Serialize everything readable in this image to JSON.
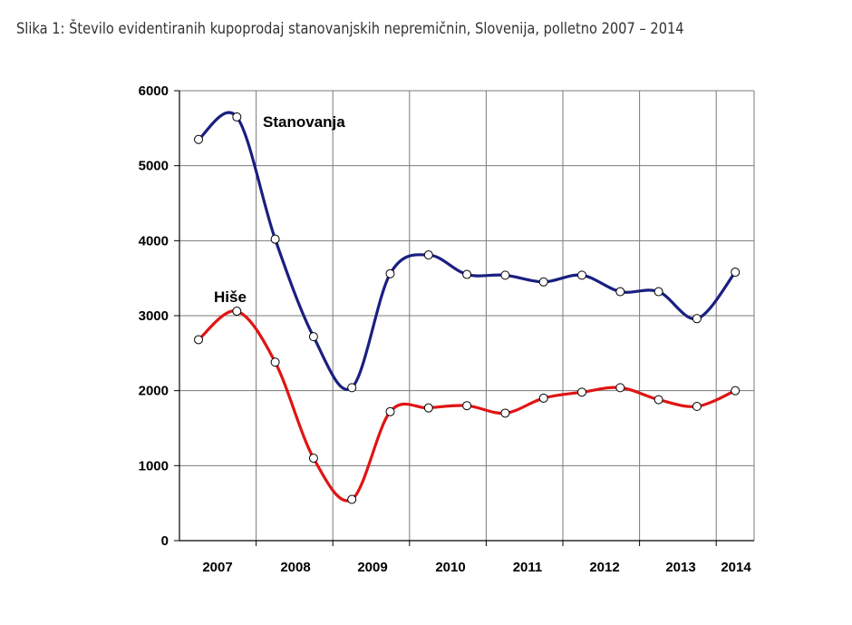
{
  "figure": {
    "caption": "Slika 1: Število evidentiranih kupoprodaj stanovanjskih nepremičnin, Slovenija, polletno 2007 – 2014"
  },
  "chart_data": {
    "type": "line",
    "title": "Slika 1: Število evidentiranih kupoprodaj stanovanjskih nepremičnin, Slovenija, polletno 2007 – 2014",
    "xlabel": "",
    "ylabel": "",
    "ylim": [
      0,
      6000
    ],
    "yticks": [
      0,
      1000,
      2000,
      3000,
      4000,
      5000,
      6000
    ],
    "x_tick_labels": [
      "2007",
      "2008",
      "2009",
      "2010",
      "2011",
      "2012",
      "2013",
      "2014"
    ],
    "x": [
      "2007 H1",
      "2007 H2",
      "2008 H1",
      "2008 H2",
      "2009 H1",
      "2009 H2",
      "2010 H1",
      "2010 H2",
      "2011 H1",
      "2011 H2",
      "2012 H1",
      "2012 H2",
      "2013 H1",
      "2013 H2",
      "2014 H1"
    ],
    "grid": true,
    "series": [
      {
        "name": "Stanovanja",
        "color": "#1a1f80",
        "values": [
          5350,
          5650,
          4020,
          2720,
          2040,
          3560,
          3810,
          3550,
          3540,
          3450,
          3540,
          3320,
          3320,
          2960,
          3580
        ]
      },
      {
        "name": "Hiše",
        "color": "#e01414",
        "values": [
          2680,
          3060,
          2380,
          1100,
          550,
          1720,
          1770,
          1800,
          1700,
          1900,
          1980,
          2040,
          1880,
          1790,
          2000
        ]
      }
    ]
  }
}
